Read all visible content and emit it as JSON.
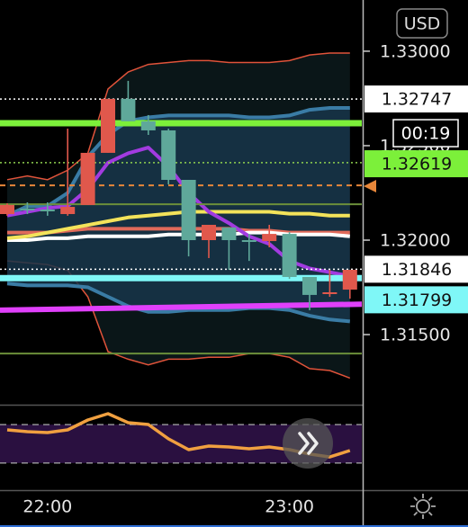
{
  "currency": "USD",
  "chart_data": {
    "type": "candlestick",
    "x": [
      0,
      1,
      2,
      3,
      4,
      5,
      6,
      7,
      8,
      9,
      10,
      11,
      12,
      13,
      14,
      15,
      16,
      17
    ],
    "open": [
      1.32138,
      1.32167,
      1.32162,
      1.32138,
      1.32186,
      1.32462,
      1.32748,
      1.32629,
      1.32581,
      1.32319,
      1.32,
      1.32067,
      1.32,
      1.31995,
      1.32033,
      1.31805,
      1.3172,
      1.31738
    ],
    "high": [
      1.32195,
      1.322,
      1.322,
      1.3259,
      1.32462,
      1.32748,
      1.32843,
      1.32662,
      1.3259,
      1.32319,
      1.32081,
      1.32067,
      1.32033,
      1.32081,
      1.32043,
      1.31805,
      1.31843,
      1.31843
    ],
    "low": [
      1.32129,
      1.32138,
      1.32129,
      1.32129,
      1.32186,
      1.32462,
      1.32629,
      1.32557,
      1.32295,
      1.31914,
      1.31905,
      1.31843,
      1.3189,
      1.31962,
      1.31795,
      1.31629,
      1.317,
      1.3169
    ],
    "close": [
      1.32186,
      1.32167,
      1.32162,
      1.32176,
      1.32462,
      1.32748,
      1.32629,
      1.32581,
      1.32319,
      1.32,
      1.32081,
      1.32,
      1.32,
      1.32033,
      1.31805,
      1.3171,
      1.31724,
      1.31843
    ],
    "up_color": "#e0584c",
    "down_color": "#5fa89a",
    "xlim": [
      -0.357,
      17.5
    ],
    "xticks": [
      {
        "value": 2,
        "label": "22:00"
      },
      {
        "value": 14,
        "label": "23:00"
      }
    ],
    "ylim": [
      1.31129,
      1.33271
    ],
    "yticks": [
      {
        "value": 1.33,
        "label": "1.33000"
      },
      {
        "value": 1.325,
        "label": "1.32500"
      },
      {
        "value": 1.32,
        "label": "1.32000"
      },
      {
        "value": 1.315,
        "label": "1.31500"
      }
    ],
    "bands": [
      {
        "color": "#e0533a",
        "fill": "#0c1a1c",
        "upper": [
          1.3232,
          1.3234,
          1.3232,
          1.3237,
          1.3246,
          1.328,
          1.3289,
          1.3293,
          1.3294,
          1.3295,
          1.3295,
          1.3294,
          1.3294,
          1.3294,
          1.3295,
          1.3298,
          1.3299,
          1.3299
        ],
        "lower": [
          1.3189,
          1.3188,
          1.3187,
          1.3184,
          1.317,
          1.3141,
          1.3137,
          1.3134,
          1.3137,
          1.3137,
          1.3138,
          1.3138,
          1.314,
          1.314,
          1.3138,
          1.3132,
          1.3131,
          1.3127
        ]
      },
      {
        "color": "#3a7ca5",
        "fill": "#17354a",
        "upper": [
          1.3213,
          1.3218,
          1.3218,
          1.3225,
          1.3244,
          1.3256,
          1.3263,
          1.3265,
          1.3266,
          1.3266,
          1.3266,
          1.3266,
          1.3265,
          1.3265,
          1.3266,
          1.3269,
          1.327,
          1.327
        ],
        "lower": [
          1.3177,
          1.3176,
          1.3176,
          1.3176,
          1.3175,
          1.317,
          1.3165,
          1.3162,
          1.3162,
          1.3163,
          1.3163,
          1.3163,
          1.3164,
          1.3164,
          1.3163,
          1.316,
          1.3158,
          1.3157
        ]
      }
    ],
    "overlays": [
      {
        "color": "#e06a5a",
        "values": [
          1.3204,
          1.3204,
          1.3204,
          1.3205,
          1.3206,
          1.3206,
          1.3206,
          1.3206,
          1.3206,
          1.3206,
          1.3206,
          1.3206,
          1.3205,
          1.3205,
          1.3204,
          1.3204,
          1.3204,
          1.3204
        ]
      },
      {
        "color": "#ffffff",
        "values": [
          1.32,
          1.32,
          1.3201,
          1.3201,
          1.3202,
          1.3202,
          1.3202,
          1.3202,
          1.3203,
          1.3203,
          1.3203,
          1.3203,
          1.3204,
          1.3204,
          1.3203,
          1.3203,
          1.3203,
          1.3202
        ]
      },
      {
        "color": "#f3e35a",
        "values": [
          1.3201,
          1.3202,
          1.3204,
          1.3206,
          1.3208,
          1.321,
          1.3212,
          1.3213,
          1.3214,
          1.3215,
          1.3215,
          1.3215,
          1.3215,
          1.3215,
          1.3214,
          1.3214,
          1.3213,
          1.3213
        ]
      },
      {
        "color": "#a23be0",
        "values": [
          1.3213,
          1.3215,
          1.3217,
          1.3218,
          1.3227,
          1.3241,
          1.3246,
          1.3249,
          1.3239,
          1.3225,
          1.3215,
          1.3209,
          1.3202,
          1.3198,
          1.3189,
          1.3185,
          1.3183,
          1.3181
        ]
      }
    ],
    "levels": [
      {
        "value": 1.32747,
        "color": "#ffffff",
        "style": "dotted",
        "tag_color": "#ffffff"
      },
      {
        "value": 1.32619,
        "color": "#7cf03a",
        "style": "thick",
        "tag_color": "#7cf03a"
      },
      {
        "value": 1.3241,
        "color": "#8fd14f",
        "style": "dotted"
      },
      {
        "value": 1.3229,
        "color": "#e8873a",
        "style": "dashed"
      },
      {
        "value": 1.3219,
        "color": "#6b8f3a",
        "style": "solid"
      },
      {
        "value": 1.31846,
        "color": "#ffffff",
        "style": "dotted",
        "tag_color": "#ffffff"
      },
      {
        "value": 1.31799,
        "color": "#7ff7f7",
        "style": "thick",
        "tag_color": "#7ff7f7"
      },
      {
        "value": 1.314,
        "color": "#6b8f3a",
        "style": "solid"
      }
    ],
    "trend_line": {
      "x": [
        0,
        17
      ],
      "values": [
        1.3163,
        1.3166
      ],
      "color": "#e040fb"
    },
    "countdown": "00:19",
    "oscillator": {
      "color": "#f0a040",
      "ylim": [
        0,
        100
      ],
      "levels": [
        70,
        30
      ],
      "values": [
        64.5,
        62.6,
        61.7,
        64.5,
        74.8,
        81.3,
        72,
        70.1,
        55.1,
        43.9,
        47.7,
        46.7,
        44.9,
        46.7,
        43.9,
        39.3,
        36.4,
        43
      ]
    }
  }
}
